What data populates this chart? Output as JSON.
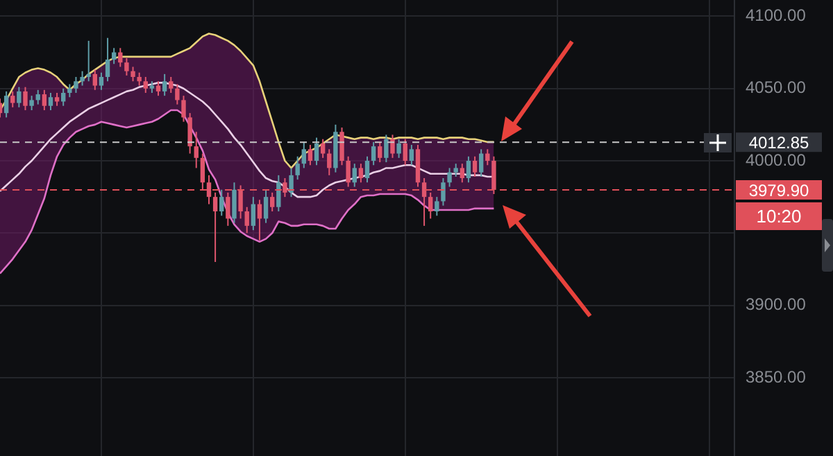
{
  "chart_data": {
    "type": "candlestick",
    "categories": [
      null,
      null,
      null,
      null,
      null,
      null,
      null,
      null,
      null,
      null,
      null,
      null,
      null,
      null,
      null,
      null,
      null,
      null,
      null,
      null,
      null,
      null,
      null,
      null,
      null,
      null,
      null,
      null,
      null,
      null,
      null,
      null,
      null,
      null,
      null,
      null,
      null,
      null,
      null,
      null,
      null,
      null,
      null,
      null,
      null,
      null,
      null,
      null,
      null,
      null,
      null,
      null,
      null,
      null,
      null,
      null,
      null,
      null,
      null,
      null,
      null,
      null,
      null,
      null,
      null,
      null,
      null,
      null,
      null,
      null,
      null,
      null,
      null,
      null,
      null,
      null,
      null,
      null,
      null,
      null,
      null,
      null,
      null,
      null,
      null,
      null,
      null,
      null,
      null,
      null,
      null,
      null,
      null,
      null,
      null,
      null,
      null,
      null,
      null,
      null,
      null,
      null,
      null,
      null,
      null,
      null,
      null,
      null,
      null,
      null,
      null,
      null,
      null,
      null,
      null,
      null,
      null
    ],
    "ohlc": [
      [
        4040,
        4043,
        4030,
        4033
      ],
      [
        4033,
        4048,
        4030,
        4045
      ],
      [
        4045,
        4048,
        4037,
        4040
      ],
      [
        4040,
        4051,
        4037,
        4048
      ],
      [
        4048,
        4051,
        4035,
        4038
      ],
      [
        4038,
        4045,
        4035,
        4042
      ],
      [
        4042,
        4049,
        4039,
        4046
      ],
      [
        4046,
        4049,
        4035,
        4038
      ],
      [
        4038,
        4047,
        4035,
        4044
      ],
      [
        4044,
        4047,
        4038,
        4041
      ],
      [
        4041,
        4050,
        4038,
        4047
      ],
      [
        4047,
        4053,
        4044,
        4050
      ],
      [
        4050,
        4058,
        4047,
        4055
      ],
      [
        4055,
        4062,
        4052,
        4058
      ],
      [
        4058,
        4083,
        4055,
        4060
      ],
      [
        4060,
        4063,
        4049,
        4052
      ],
      [
        4052,
        4061,
        4049,
        4058
      ],
      [
        4058,
        4085,
        4055,
        4070
      ],
      [
        4070,
        4078,
        4067,
        4075
      ],
      [
        4075,
        4078,
        4065,
        4068
      ],
      [
        4068,
        4071,
        4059,
        4062
      ],
      [
        4062,
        4065,
        4055,
        4058
      ],
      [
        4058,
        4061,
        4052,
        4055
      ],
      [
        4055,
        4058,
        4047,
        4050
      ],
      [
        4050,
        4055,
        4047,
        4052
      ],
      [
        4052,
        4055,
        4045,
        4048
      ],
      [
        4048,
        4060,
        4045,
        4055
      ],
      [
        4055,
        4058,
        4047,
        4050
      ],
      [
        4050,
        4053,
        4039,
        4042
      ],
      [
        4042,
        4045,
        4027,
        4030
      ],
      [
        4030,
        4033,
        4005,
        4010
      ],
      [
        4010,
        4020,
        3995,
        4002
      ],
      [
        4002,
        4005,
        3980,
        3985
      ],
      [
        3985,
        3990,
        3970,
        3975
      ],
      [
        3975,
        3978,
        3930,
        3965
      ],
      [
        3965,
        3980,
        3962,
        3975
      ],
      [
        3975,
        3978,
        3955,
        3960
      ],
      [
        3960,
        3985,
        3957,
        3980
      ],
      [
        3980,
        3983,
        3960,
        3965
      ],
      [
        3965,
        3968,
        3950,
        3955
      ],
      [
        3955,
        3975,
        3952,
        3970
      ],
      [
        3970,
        3973,
        3945,
        3960
      ],
      [
        3960,
        3980,
        3957,
        3975
      ],
      [
        3975,
        3978,
        3965,
        3968
      ],
      [
        3968,
        3990,
        3965,
        3985
      ],
      [
        3985,
        3988,
        3975,
        3978
      ],
      [
        3978,
        3995,
        3975,
        3990
      ],
      [
        3990,
        4003,
        3987,
        3998
      ],
      [
        3998,
        4013,
        3995,
        4008
      ],
      [
        4008,
        4011,
        3997,
        4000
      ],
      [
        4000,
        4016,
        3997,
        4012
      ],
      [
        4012,
        4015,
        4002,
        4005
      ],
      [
        4005,
        4008,
        3990,
        3995
      ],
      [
        3995,
        4025,
        3992,
        4020
      ],
      [
        4020,
        4023,
        3997,
        4000
      ],
      [
        4000,
        4003,
        3982,
        3985
      ],
      [
        3985,
        3998,
        3982,
        3995
      ],
      [
        3995,
        3998,
        3985,
        3988
      ],
      [
        3988,
        4003,
        3985,
        4000
      ],
      [
        4000,
        4013,
        3997,
        4010
      ],
      [
        4010,
        4013,
        3999,
        4002
      ],
      [
        4002,
        4018,
        3999,
        4015
      ],
      [
        4015,
        4018,
        4002,
        4005
      ],
      [
        4005,
        4015,
        4002,
        4012
      ],
      [
        4012,
        4015,
        3997,
        4000
      ],
      [
        4000,
        4011,
        3997,
        4008
      ],
      [
        4008,
        4011,
        3982,
        3985
      ],
      [
        3985,
        3988,
        3955,
        3975
      ],
      [
        3975,
        3978,
        3960,
        3965
      ],
      [
        3965,
        3975,
        3962,
        3972
      ],
      [
        3972,
        3988,
        3969,
        3985
      ],
      [
        3985,
        3995,
        3982,
        3992
      ],
      [
        3992,
        3998,
        3989,
        3995
      ],
      [
        3995,
        3998,
        3985,
        3988
      ],
      [
        3988,
        4003,
        3985,
        4000
      ],
      [
        4000,
        4003,
        3989,
        3992
      ],
      [
        3992,
        4008,
        3989,
        4005
      ],
      [
        4005,
        4008,
        3997,
        4000
      ],
      [
        4000,
        4003,
        3977,
        3979.9
      ],
      null,
      null,
      null,
      null,
      null,
      null,
      null,
      null,
      null,
      null,
      null,
      null,
      null,
      null,
      null,
      null,
      null,
      null,
      null,
      null,
      null,
      null,
      null,
      null,
      null,
      null,
      null,
      null,
      null,
      null,
      null,
      null,
      null,
      null,
      null,
      null,
      null,
      null
    ],
    "series": [
      {
        "type": "line",
        "color": "#e8d27a",
        "values": [
          4035,
          4042,
          4050,
          4058,
          4061,
          4063,
          4064,
          4063,
          4061,
          4058,
          4053,
          4049,
          4053,
          4056,
          4060,
          4063,
          4066,
          4069,
          4071,
          4072,
          4072,
          4072,
          4072,
          4072,
          4072,
          4072,
          4072,
          4072,
          4074,
          4076,
          4078,
          4082,
          4086,
          4088,
          4087,
          4085,
          4083,
          4080,
          4076,
          4071,
          4066,
          4055,
          4041,
          4027,
          4013,
          4000,
          3995,
          4000,
          4005,
          4007,
          4009,
          4012,
          4015,
          4018,
          4017,
          4016,
          4015,
          4016,
          4016,
          4015,
          4016,
          4016,
          4015,
          4016,
          4016,
          4016,
          4015,
          4016,
          4016,
          4016,
          4015,
          4016,
          4016,
          4016,
          4015,
          4015,
          4014,
          4013,
          4013,
          null,
          null,
          null,
          null,
          null,
          null,
          null,
          null,
          null,
          null,
          null,
          null,
          null,
          null,
          null,
          null,
          null,
          null,
          null,
          null,
          null,
          null,
          null,
          null,
          null,
          null,
          null,
          null,
          null,
          null,
          null,
          null,
          null,
          null,
          null,
          null,
          null,
          null
        ]
      },
      {
        "type": "line",
        "color": "#ead0e6",
        "values": [
          3979,
          3983,
          3987,
          3991,
          3996,
          4000,
          4005,
          4010,
          4015,
          4019,
          4023,
          4027,
          4030,
          4033,
          4036,
          4038,
          4040,
          4042,
          4044,
          4046,
          4048,
          4049,
          4051,
          4052,
          4053,
          4054,
          4054,
          4053,
          4052,
          4050,
          4047,
          4044,
          4041,
          4037,
          4032,
          4027,
          4022,
          4016,
          4011,
          4005,
          3999,
          3993,
          3988,
          3986,
          3985,
          3982,
          3978,
          3975,
          3975,
          3975,
          3976,
          3980,
          3983,
          3985,
          3986,
          3987,
          3988,
          3989,
          3990,
          3992,
          3993,
          3995,
          3995,
          3996,
          3997,
          3997,
          3995,
          3993,
          3991,
          3991,
          3991,
          3991,
          3991,
          3991,
          3990,
          3990,
          3990,
          3989,
          3989,
          null,
          null,
          null,
          null,
          null,
          null,
          null,
          null,
          null,
          null,
          null,
          null,
          null,
          null,
          null,
          null,
          null,
          null,
          null,
          null,
          null,
          null,
          null,
          null,
          null,
          null,
          null,
          null,
          null,
          null,
          null,
          null,
          null,
          null,
          null,
          null,
          null,
          null
        ],
        "upper": [
          4035,
          4042,
          4050,
          4058,
          4061,
          4063,
          4064,
          4063,
          4061,
          4058,
          4053,
          4049,
          4053,
          4056,
          4060,
          4063,
          4066,
          4069,
          4071,
          4072,
          4072,
          4072,
          4072,
          4072,
          4072,
          4072,
          4072,
          4072,
          4074,
          4076,
          4078,
          4082,
          4086,
          4088,
          4087,
          4085,
          4083,
          4080,
          4076,
          4071,
          4066,
          4055,
          4041,
          4027,
          4013,
          4000,
          3995,
          4000,
          4005,
          4007,
          4009,
          4012,
          4015,
          4018,
          4017,
          4016,
          4015,
          4016,
          4016,
          4015,
          4016,
          4016,
          4015,
          4016,
          4016,
          4016,
          4015,
          4016,
          4016,
          4016,
          4015,
          4016,
          4016,
          4016,
          4015,
          4015,
          4014,
          4013,
          4013,
          null,
          null,
          null,
          null,
          null,
          null,
          null,
          null,
          null,
          null,
          null,
          null,
          null,
          null,
          null,
          null,
          null,
          null,
          null,
          null,
          null,
          null,
          null,
          null,
          null,
          null,
          null,
          null,
          null,
          null,
          null,
          null,
          null,
          null,
          null,
          null,
          null,
          null
        ],
        "lower": [
          3922,
          3927,
          3932,
          3938,
          3944,
          3952,
          3963,
          3974,
          3990,
          4003,
          4011,
          4016,
          4020,
          4022,
          4024,
          4025,
          4027,
          4026,
          4025,
          4024,
          4023,
          4024,
          4025,
          4026,
          4027,
          4029,
          4032,
          4035,
          4035,
          4032,
          4024,
          4016,
          4007,
          3994,
          3987,
          3975,
          3964,
          3956,
          3951,
          3948,
          3946,
          3944,
          3946,
          3950,
          3958,
          3957,
          3955,
          3955,
          3956,
          3956,
          3956,
          3955,
          3953,
          3953,
          3960,
          3966,
          3970,
          3975,
          3976,
          3976,
          3977,
          3977,
          3977,
          3977,
          3977,
          3976,
          3973,
          3969,
          3966,
          3966,
          3966,
          3966,
          3966,
          3966,
          3966,
          3967,
          3967,
          3967,
          3967,
          null,
          null,
          null,
          null,
          null,
          null,
          null,
          null,
          null,
          null,
          null,
          null,
          null,
          null,
          null,
          null,
          null,
          null,
          null,
          null,
          null,
          null,
          null,
          null,
          null,
          null,
          null,
          null,
          null,
          null,
          null,
          null,
          null,
          null,
          null,
          null,
          null,
          null
        ]
      },
      {
        "type": "line",
        "color": "#e070c8",
        "values": [
          3922,
          3927,
          3932,
          3938,
          3944,
          3952,
          3963,
          3974,
          3990,
          4003,
          4011,
          4016,
          4020,
          4022,
          4024,
          4025,
          4027,
          4026,
          4025,
          4024,
          4023,
          4024,
          4025,
          4026,
          4027,
          4029,
          4032,
          4035,
          4035,
          4032,
          4024,
          4016,
          4007,
          3994,
          3987,
          3975,
          3964,
          3956,
          3951,
          3948,
          3946,
          3944,
          3946,
          3950,
          3958,
          3957,
          3955,
          3955,
          3956,
          3956,
          3956,
          3955,
          3953,
          3953,
          3960,
          3966,
          3970,
          3975,
          3976,
          3976,
          3977,
          3977,
          3977,
          3977,
          3977,
          3976,
          3973,
          3969,
          3966,
          3966,
          3966,
          3966,
          3966,
          3966,
          3966,
          3967,
          3967,
          3967,
          3967,
          null,
          null,
          null,
          null,
          null,
          null,
          null,
          null,
          null,
          null,
          null,
          null,
          null,
          null,
          null,
          null,
          null,
          null,
          null,
          null,
          null,
          null,
          null,
          null,
          null,
          null,
          null,
          null,
          null,
          null,
          null,
          null,
          null,
          null,
          null,
          null,
          null,
          null
        ]
      }
    ],
    "ylim": [
      3795,
      4112
    ],
    "yticks": [
      {
        "value": 3850,
        "label": "3850.00"
      },
      {
        "value": 3900,
        "label": "3900.00"
      },
      {
        "value": 3950,
        "label": null
      },
      {
        "value": 4000,
        "label": "4000.00"
      },
      {
        "value": 4050,
        "label": "4050.00"
      },
      {
        "value": 4100,
        "label": "4100.00"
      }
    ],
    "ref_lines": [
      {
        "axis": "y",
        "value": 4012.85,
        "label": "4012.85",
        "color": "#c8c8c8",
        "line_style": "dashed"
      },
      {
        "axis": "y",
        "value": 3979.9,
        "label": "3979.90",
        "color": "#e0505a",
        "line_style": "dashed"
      }
    ],
    "annotations": [
      "10:20"
    ],
    "grid": true,
    "marker": "none",
    "line_style": "solid",
    "tick_labels": "y"
  }
}
